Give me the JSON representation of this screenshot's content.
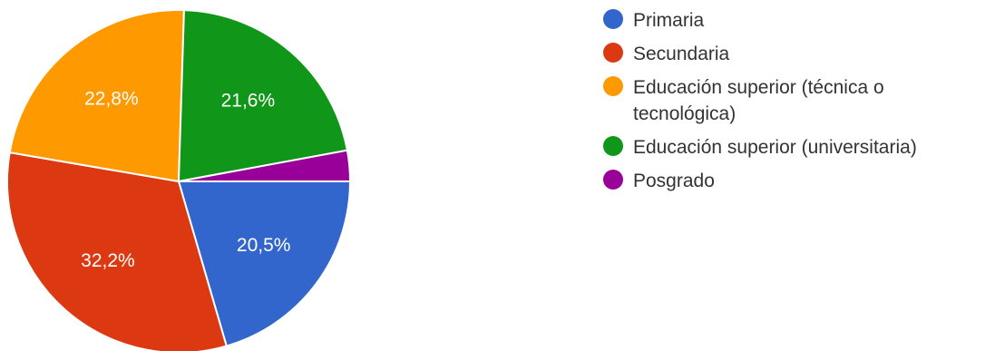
{
  "chart_data": {
    "type": "pie",
    "slices": [
      {
        "label": "Primaria",
        "value": 20.5,
        "display": "20,5%",
        "color": "#3366cc"
      },
      {
        "label": "Secundaria",
        "value": 32.2,
        "display": "32,2%",
        "color": "#dc3912"
      },
      {
        "label": "Educación superior (técnica o tecnológica)",
        "value": 22.8,
        "display": "22,8%",
        "color": "#ff9900"
      },
      {
        "label": "Educación superior (universitaria)",
        "value": 21.6,
        "display": "21,6%",
        "color": "#109618"
      },
      {
        "label": "Posgrado",
        "value": 2.9,
        "display": "",
        "color": "#990099"
      }
    ],
    "legend_position": "right",
    "start": "3 o'clock",
    "direction": "clockwise"
  }
}
